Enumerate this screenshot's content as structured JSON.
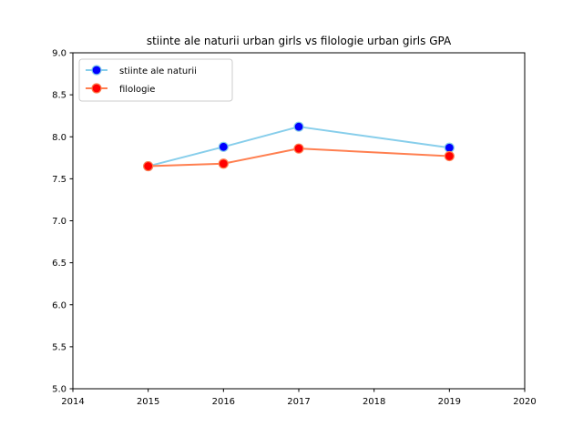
{
  "chart_data": {
    "type": "line",
    "title": "stiinte ale naturii urban girls vs filologie urban girls GPA",
    "xlabel": "",
    "ylabel": "",
    "xlim": [
      2014,
      2020
    ],
    "ylim": [
      5.0,
      9.0
    ],
    "x_ticks": [
      "2014",
      "2015",
      "2016",
      "2017",
      "2018",
      "2019",
      "2020"
    ],
    "y_ticks": [
      "5.0",
      "5.5",
      "6.0",
      "6.5",
      "7.0",
      "7.5",
      "8.0",
      "8.5",
      "9.0"
    ],
    "grid": false,
    "legend_position": "upper-left",
    "series": [
      {
        "name": "stiinte ale naturii",
        "x": [
          2015,
          2016,
          2017,
          2019
        ],
        "values": [
          7.65,
          7.88,
          8.12,
          7.87
        ],
        "line_color": "#87ceeb",
        "marker_color": "#0000ff"
      },
      {
        "name": "filologie",
        "x": [
          2015,
          2016,
          2017,
          2019
        ],
        "values": [
          7.65,
          7.68,
          7.86,
          7.77
        ],
        "line_color": "#ff7f50",
        "marker_color": "#ff0000"
      }
    ]
  }
}
